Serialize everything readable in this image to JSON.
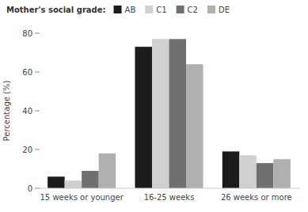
{
  "chart_data": {
    "type": "bar",
    "categories": [
      "15 weeks or younger",
      "16-25 weeks",
      "26 weeks or more"
    ],
    "series": [
      {
        "name": "AB",
        "color": "#1c1c1c",
        "values": [
          6,
          73,
          19
        ]
      },
      {
        "name": "C1",
        "color": "#d0d0d0",
        "values": [
          4,
          77,
          17
        ]
      },
      {
        "name": "C2",
        "color": "#707070",
        "values": [
          9,
          77,
          13
        ]
      },
      {
        "name": "DE",
        "color": "#b0b0b0",
        "values": [
          18,
          64,
          15
        ]
      }
    ],
    "y_label": "Percentage (%)",
    "ylim": [
      0,
      80
    ],
    "yticks": [
      0,
      20,
      40,
      60,
      80
    ],
    "legend_title": "Mother's social grade:",
    "legend": "top",
    "grid": false
  }
}
